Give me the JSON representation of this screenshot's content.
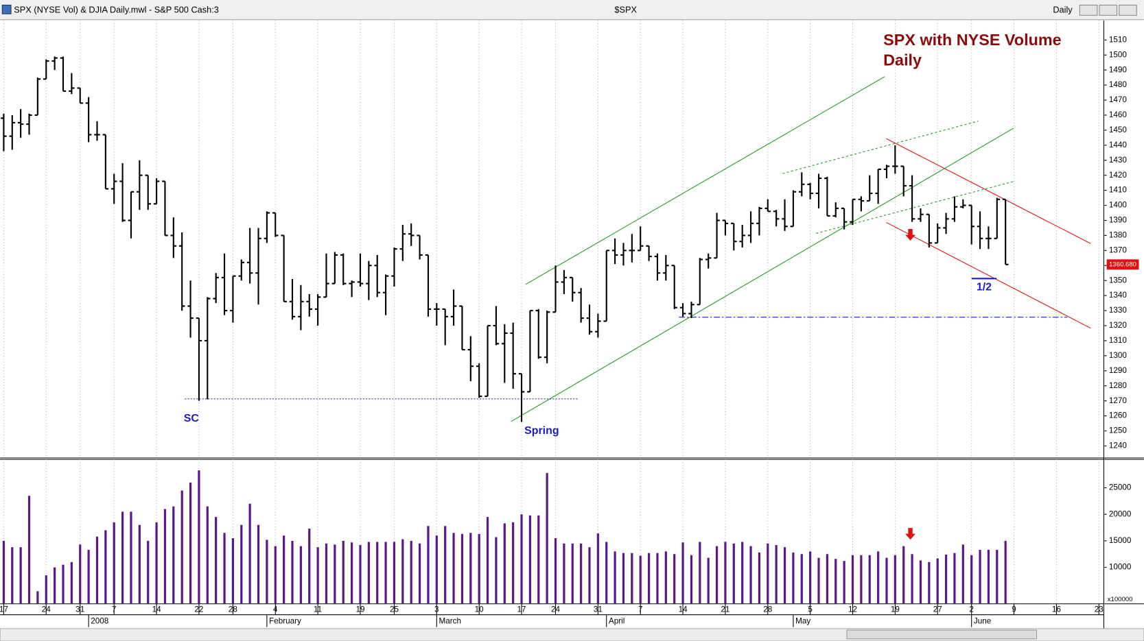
{
  "window": {
    "title": "SPX (NYSE Vol) & DJIA Daily.mwl - S&P 500 Cash:3",
    "symbol": "$SPX",
    "interval": "Daily"
  },
  "chart_data": [
    {
      "type": "ohlc",
      "title": [
        "SPX with NYSE Volume",
        "Daily"
      ],
      "annotations": [
        "SC",
        "Spring",
        "1/2"
      ],
      "last_value_label": "1360.680",
      "categories": [
        "17",
        null,
        null,
        null,
        null,
        "24",
        null,
        null,
        null,
        "31",
        null,
        null,
        null,
        "7",
        null,
        null,
        null,
        null,
        "14",
        null,
        null,
        null,
        null,
        "22",
        null,
        null,
        null,
        "28",
        null,
        null,
        null,
        null,
        "4",
        null,
        null,
        null,
        null,
        "11",
        null,
        null,
        null,
        null,
        "19",
        null,
        null,
        null,
        "25",
        null,
        null,
        null,
        null,
        "3",
        null,
        null,
        null,
        null,
        "10",
        null,
        null,
        null,
        null,
        "17",
        null,
        null,
        null,
        "24",
        null,
        null,
        null,
        null,
        "31",
        null,
        null,
        null,
        null,
        "7",
        null,
        null,
        null,
        null,
        "14",
        null,
        null,
        null,
        null,
        "21",
        null,
        null,
        null,
        null,
        "28",
        null,
        null,
        null,
        null,
        "5",
        null,
        null,
        null,
        null,
        "12",
        null,
        null,
        null,
        null,
        "19",
        null,
        null,
        null,
        null,
        "27",
        null,
        null,
        null,
        "2",
        null,
        null,
        null,
        null,
        "9",
        null,
        null,
        null,
        null,
        "16",
        null,
        null,
        null,
        null,
        "23"
      ],
      "month_labels": [
        null,
        null,
        null,
        null,
        null,
        null,
        null,
        null,
        null,
        null,
        "2008",
        null,
        null,
        null,
        null,
        null,
        null,
        null,
        null,
        null,
        null,
        null,
        null,
        null,
        null,
        null,
        null,
        null,
        null,
        null,
        null,
        "February",
        null,
        null,
        null,
        null,
        null,
        null,
        null,
        null,
        null,
        null,
        null,
        null,
        null,
        null,
        null,
        null,
        null,
        null,
        null,
        "March",
        null,
        null,
        null,
        null,
        null,
        null,
        null,
        null,
        null,
        null,
        null,
        null,
        null,
        null,
        null,
        null,
        null,
        null,
        null,
        "April",
        null,
        null,
        null,
        null,
        null,
        null,
        null,
        null,
        null,
        null,
        null,
        null,
        null,
        null,
        null,
        null,
        null,
        null,
        null,
        null,
        null,
        "May",
        null,
        null,
        null,
        null,
        null,
        null,
        null,
        null,
        null,
        null,
        null,
        null,
        null,
        null,
        null,
        null,
        null,
        null,
        null,
        null,
        "June",
        null,
        null,
        null,
        null,
        null,
        null,
        null,
        null,
        null,
        null,
        null,
        null,
        null,
        null,
        null
      ],
      "open": [
        1458,
        1446,
        1455,
        1454,
        1460,
        1484,
        1496,
        1498,
        1476,
        1478,
        1468,
        1447,
        1447,
        1411,
        1416,
        1390,
        1409,
        1420,
        1401,
        1416,
        1380,
        1373,
        1333,
        1325,
        1310,
        1338,
        1352,
        1330,
        1353,
        1362,
        1355,
        1378,
        1395,
        1380,
        1336,
        1326,
        1336,
        1331,
        1339,
        1348,
        1367,
        1348,
        1349,
        1348,
        1360,
        1342,
        1353,
        1371,
        1381,
        1380,
        1367,
        1331,
        1331,
        1326,
        1333,
        1304,
        1293,
        1273,
        1320,
        1308,
        1315,
        1288,
        1276,
        1330,
        1299,
        1329,
        1349,
        1352,
        1342,
        1325,
        1316,
        1323,
        1370,
        1367,
        1370,
        1370,
        1373,
        1366,
        1355,
        1360,
        1332,
        1328,
        1334,
        1364,
        1365,
        1390,
        1388,
        1376,
        1380,
        1388,
        1398,
        1396,
        1391,
        1386,
        1409,
        1414,
        1408,
        1418,
        1393,
        1398,
        1389,
        1404,
        1403,
        1408,
        1424,
        1426,
        1426,
        1413,
        1391,
        1394,
        1375,
        1385,
        1391,
        1399,
        1400,
        1386,
        1378,
        1378,
        1404,
        null,
        null,
        null,
        null,
        null,
        null,
        null,
        null,
        null,
        null,
        null
      ],
      "high": [
        1461,
        1460,
        1464,
        1461,
        1485,
        1497,
        1499,
        1499,
        1488,
        1478,
        1472,
        1456,
        1447,
        1421,
        1428,
        1409,
        1430,
        1420,
        1418,
        1416,
        1392,
        1382,
        1350,
        1325,
        1339,
        1355,
        1368,
        1353,
        1364,
        1385,
        1385,
        1396,
        1395,
        1380,
        1351,
        1347,
        1341,
        1341,
        1368,
        1369,
        1368,
        1350,
        1368,
        1363,
        1367,
        1354,
        1372,
        1387,
        1388,
        1380,
        1367,
        1335,
        1331,
        1344,
        1333,
        1313,
        1295,
        1320,
        1333,
        1321,
        1322,
        1288,
        1330,
        1331,
        1330,
        1360,
        1357,
        1352,
        1345,
        1334,
        1328,
        1370,
        1378,
        1375,
        1381,
        1386,
        1373,
        1368,
        1367,
        1360,
        1335,
        1336,
        1365,
        1368,
        1395,
        1390,
        1388,
        1387,
        1396,
        1399,
        1404,
        1397,
        1404,
        1410,
        1422,
        1415,
        1421,
        1419,
        1402,
        1398,
        1404,
        1406,
        1420,
        1424,
        1427,
        1440,
        1426,
        1420,
        1398,
        1394,
        1388,
        1395,
        1406,
        1404,
        1400,
        1396,
        1386,
        1405,
        1404,
        null,
        null,
        null,
        null,
        null,
        null,
        null,
        null,
        null,
        null,
        null
      ],
      "low": [
        1436,
        1437,
        1445,
        1447,
        1460,
        1484,
        1490,
        1476,
        1474,
        1468,
        1442,
        1443,
        1411,
        1401,
        1389,
        1378,
        1397,
        1397,
        1401,
        1380,
        1365,
        1330,
        1312,
        1270,
        1271,
        1335,
        1327,
        1322,
        1350,
        1348,
        1334,
        1375,
        1379,
        1336,
        1324,
        1317,
        1326,
        1320,
        1339,
        1348,
        1347,
        1339,
        1346,
        1337,
        1339,
        1327,
        1346,
        1363,
        1373,
        1364,
        1326,
        1320,
        1307,
        1320,
        1304,
        1283,
        1272,
        1273,
        1307,
        1282,
        1278,
        1256,
        1276,
        1298,
        1295,
        1329,
        1341,
        1336,
        1322,
        1314,
        1312,
        1323,
        1361,
        1360,
        1362,
        1370,
        1363,
        1350,
        1350,
        1331,
        1326,
        1325,
        1334,
        1358,
        1365,
        1380,
        1370,
        1372,
        1375,
        1380,
        1396,
        1386,
        1383,
        1386,
        1406,
        1404,
        1398,
        1393,
        1392,
        1384,
        1387,
        1396,
        1403,
        1401,
        1418,
        1421,
        1406,
        1389,
        1389,
        1372,
        1375,
        1381,
        1389,
        1398,
        1374,
        1371,
        1371,
        1378,
        1360.68,
        null,
        null,
        null,
        null,
        null,
        null,
        null,
        null,
        null,
        null,
        null
      ],
      "close": [
        1446,
        1455,
        1454,
        1460,
        1484,
        1496,
        1498,
        1476,
        1478,
        1468,
        1447,
        1447,
        1411,
        1416,
        1390,
        1409,
        1420,
        1401,
        1416,
        1380,
        1373,
        1333,
        1325,
        1310,
        1338,
        1352,
        1330,
        1353,
        1362,
        1355,
        1378,
        1395,
        1380,
        1336,
        1326,
        1336,
        1331,
        1339,
        1348,
        1367,
        1348,
        1349,
        1348,
        1360,
        1342,
        1353,
        1371,
        1381,
        1380,
        1367,
        1331,
        1331,
        1326,
        1333,
        1304,
        1293,
        1273,
        1320,
        1308,
        1315,
        1288,
        1276,
        1330,
        1299,
        1329,
        1349,
        1352,
        1342,
        1325,
        1316,
        1323,
        1370,
        1367,
        1370,
        1370,
        1373,
        1366,
        1355,
        1360,
        1332,
        1328,
        1334,
        1364,
        1365,
        1390,
        1388,
        1376,
        1380,
        1388,
        1398,
        1396,
        1391,
        1386,
        1409,
        1414,
        1408,
        1418,
        1393,
        1398,
        1389,
        1404,
        1403,
        1408,
        1424,
        1426,
        1426,
        1413,
        1391,
        1394,
        1375,
        1385,
        1391,
        1399,
        1400,
        1386,
        1378,
        1378,
        1404,
        1360.68,
        null,
        null,
        null,
        null,
        null,
        null,
        null,
        null,
        null,
        null,
        null
      ],
      "color": "#000000",
      "ylim": [
        1232,
        1523
      ],
      "yticks": [
        1240,
        1250,
        1260,
        1270,
        1280,
        1290,
        1300,
        1310,
        1320,
        1330,
        1340,
        1350,
        1360,
        1370,
        1380,
        1390,
        1400,
        1410,
        1420,
        1430,
        1440,
        1450,
        1460,
        1470,
        1480,
        1490,
        1500,
        1510
      ],
      "grid": "vertical"
    },
    {
      "type": "bar",
      "axis_multiplier": "x100000",
      "values": [
        15000,
        13800,
        13800,
        23500,
        5500,
        8500,
        10000,
        10500,
        11000,
        14300,
        13300,
        15800,
        17000,
        18500,
        20500,
        20500,
        18000,
        15000,
        18500,
        21000,
        21500,
        24500,
        26000,
        28300,
        21500,
        19500,
        16500,
        15500,
        18000,
        22000,
        18000,
        15200,
        14000,
        16000,
        15000,
        14000,
        17300,
        13800,
        14500,
        14300,
        15000,
        14700,
        14200,
        14800,
        14800,
        14800,
        14800,
        15300,
        15000,
        14500,
        17800,
        16000,
        17800,
        16500,
        16300,
        16500,
        16300,
        19500,
        15700,
        18300,
        18500,
        20000,
        19800,
        19800,
        27800,
        15500,
        14500,
        14500,
        14500,
        13800,
        16400,
        14800,
        13000,
        12700,
        12700,
        12200,
        12700,
        12700,
        13000,
        12500,
        14700,
        12300,
        14800,
        11800,
        14000,
        14800,
        14500,
        14800,
        14000,
        12800,
        14500,
        14200,
        13800,
        12800,
        12500,
        13000,
        11800,
        12500,
        11600,
        11200,
        12300,
        12300,
        12300,
        13000,
        11800,
        12300,
        14000,
        12500,
        11300,
        11000,
        11700,
        12400,
        12700,
        14300,
        12300,
        13300,
        13300,
        13300,
        15000,
        null,
        null,
        null,
        null,
        null,
        null,
        null,
        null,
        null,
        null,
        null
      ],
      "color": "#5b168c",
      "ylim": [
        3120,
        30360
      ],
      "yticks": [
        10000,
        15000,
        20000,
        25000
      ]
    }
  ]
}
